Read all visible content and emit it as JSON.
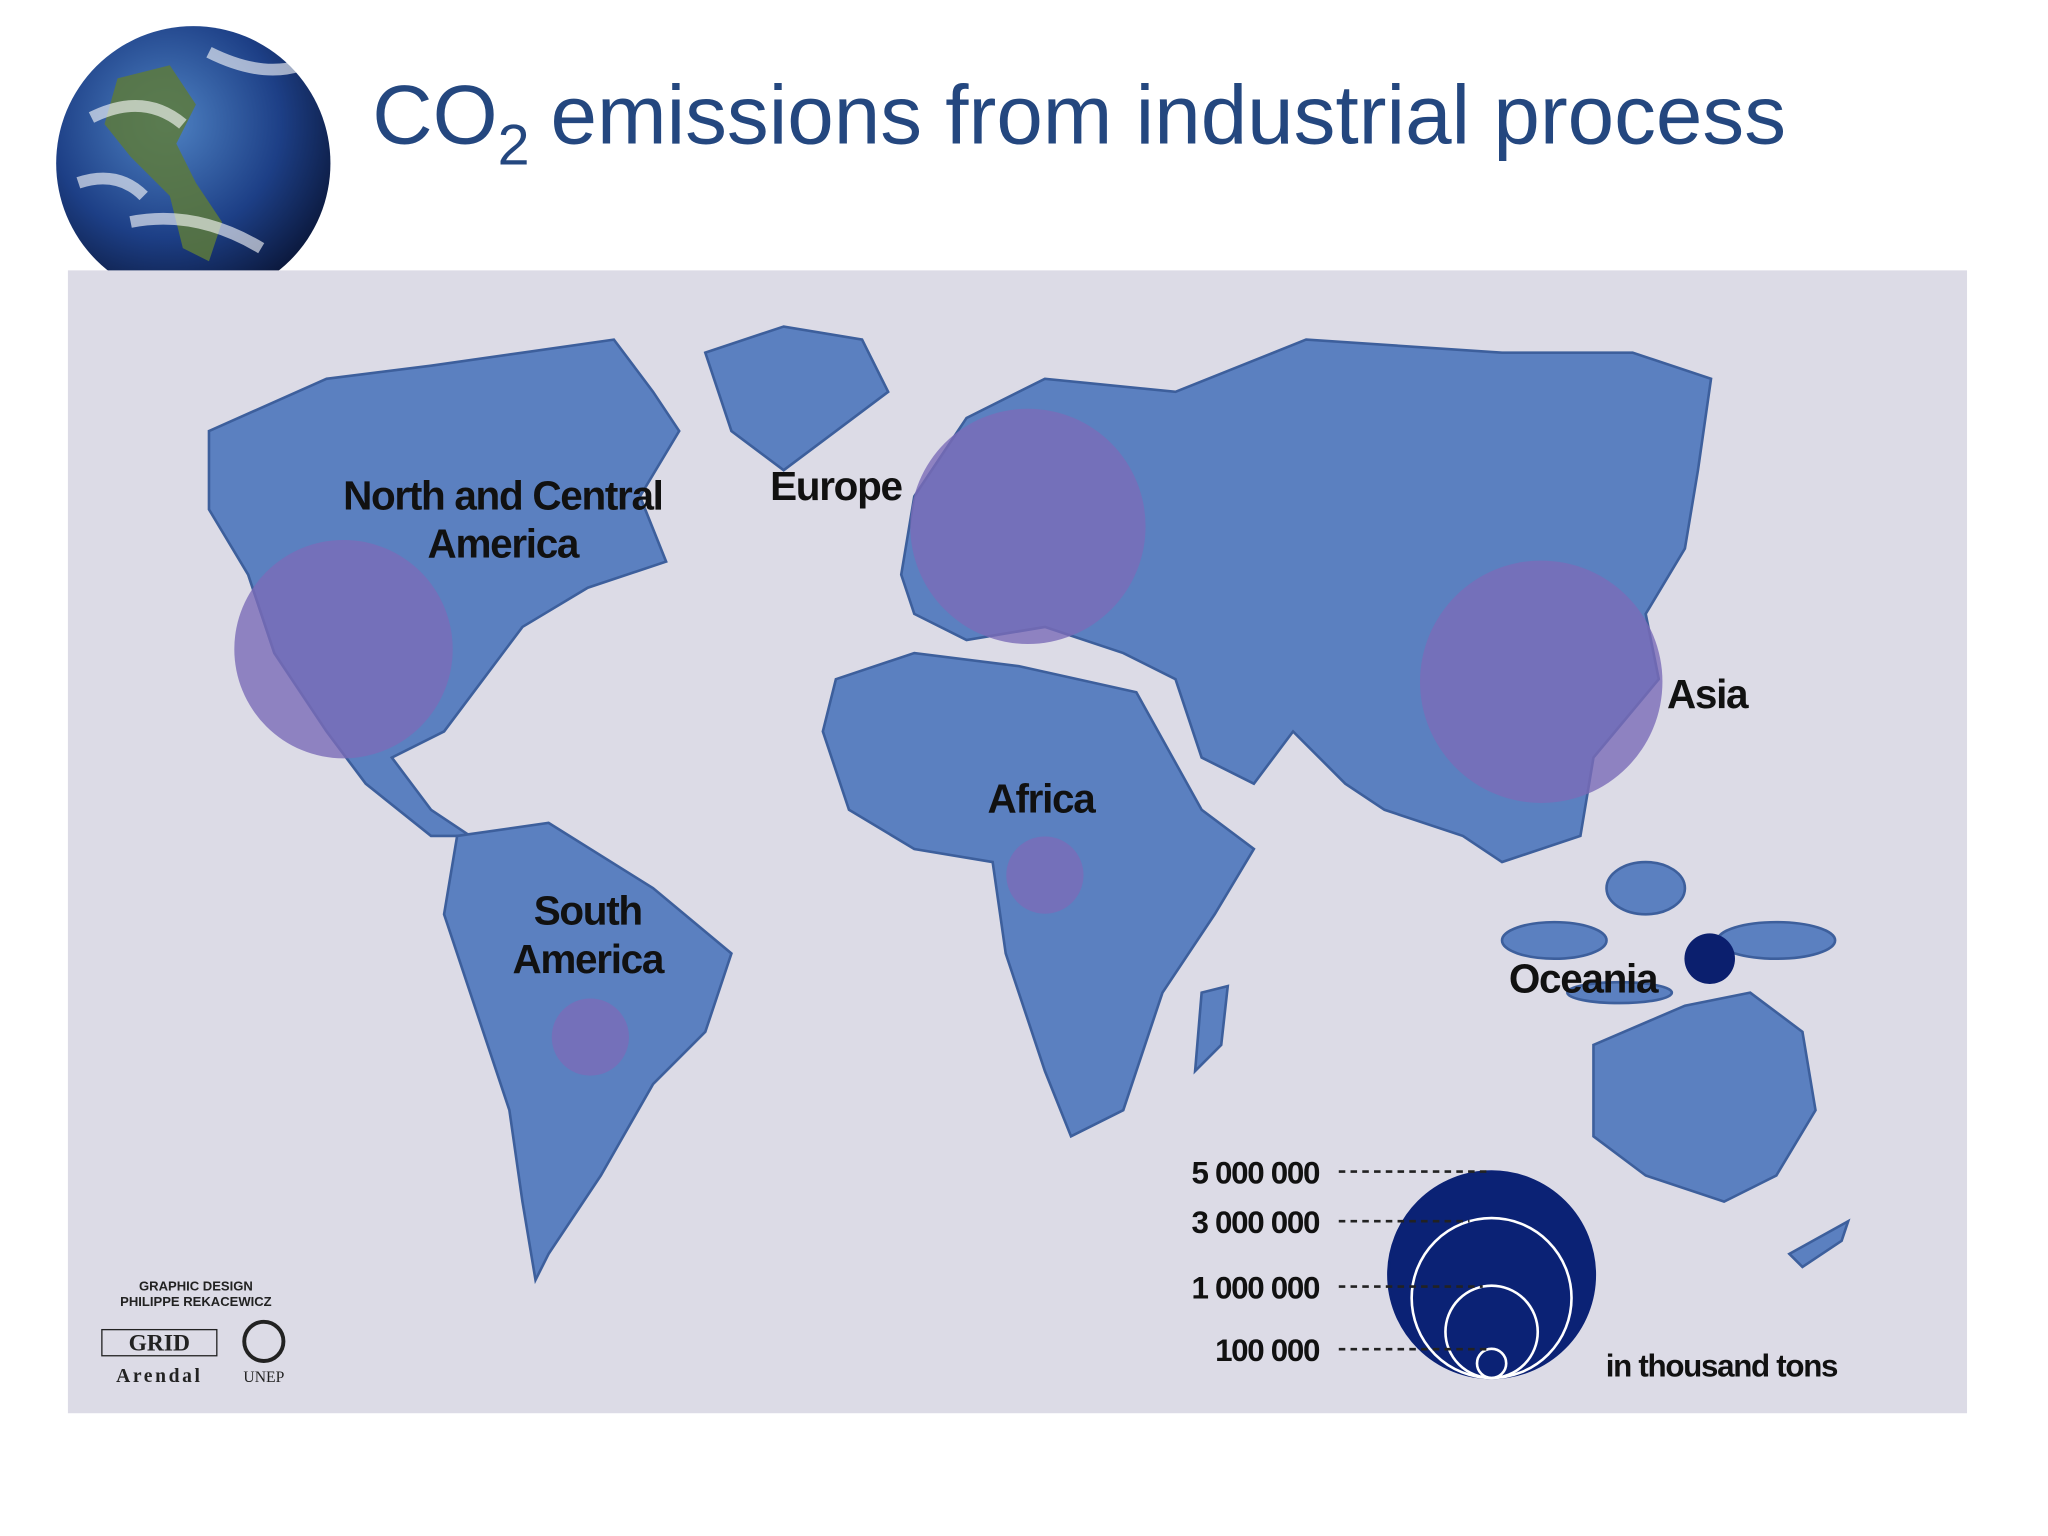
{
  "title": {
    "main": "CO",
    "subscript": "2",
    "rest": "emissions from industrial process"
  },
  "map": {
    "regions": [
      {
        "name": [
          "North and Central",
          "America"
        ],
        "value": 5600000,
        "color": "#7b6bb8"
      },
      {
        "name": [
          "Europe"
        ],
        "value": 6500000,
        "color": "#7b6bb8"
      },
      {
        "name": [
          "Asia"
        ],
        "value": 6900000,
        "color": "#7b6bb8"
      },
      {
        "name": [
          "Africa"
        ],
        "value": 700000,
        "color": "#7b6bb8"
      },
      {
        "name": [
          "South",
          "America"
        ],
        "value": 700000,
        "color": "#7b6bb8"
      },
      {
        "name": [
          "Oceania"
        ],
        "value": 300000,
        "color": "#0b1f6e"
      }
    ],
    "legend": {
      "ticks": [
        {
          "value": 5000000,
          "label": "5 000 000"
        },
        {
          "value": 3000000,
          "label": "3 000 000"
        },
        {
          "value": 1000000,
          "label": "1 000 000"
        },
        {
          "value": 100000,
          "label": "100 000"
        }
      ],
      "unit": "in thousand tons",
      "color": "#0b2275"
    },
    "credits": {
      "line1": "GRAPHIC DESIGN",
      "line2": "PHILIPPE REKACEWICZ",
      "logo1": "GRID",
      "logo1_sub": "Arendal",
      "logo2": "UNEP"
    }
  }
}
